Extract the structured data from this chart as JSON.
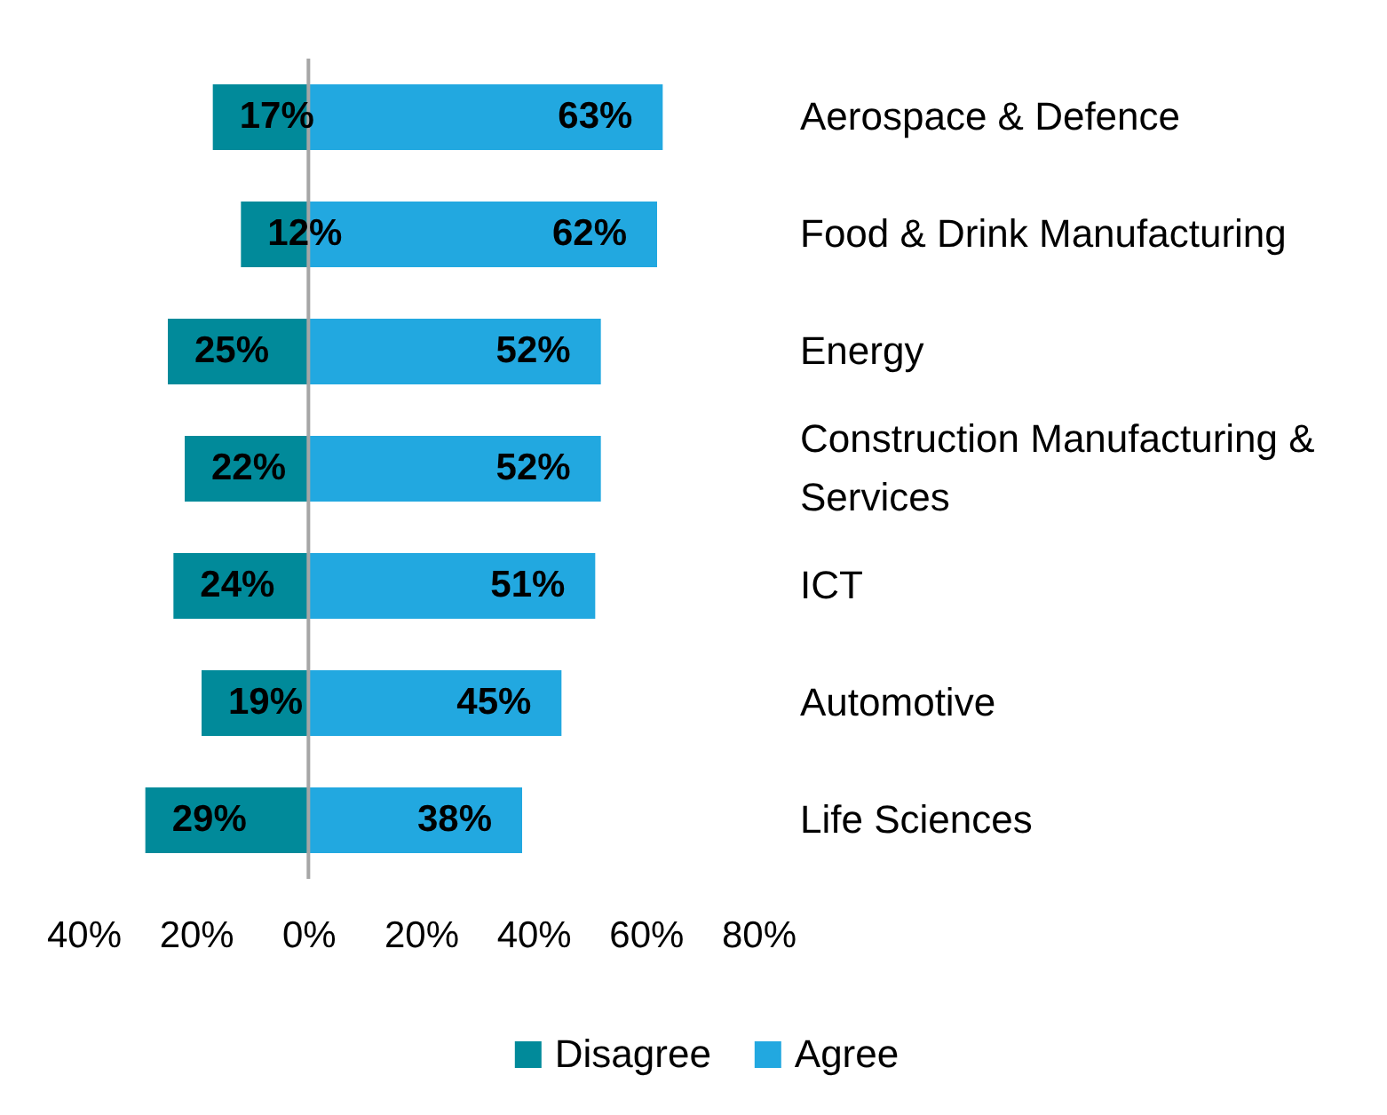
{
  "chart_data": {
    "type": "bar",
    "orientation": "horizontal",
    "stacked": true,
    "categories": [
      "Aerospace & Defence",
      "Food & Drink Manufacturing",
      "Energy",
      "Construction Manufacturing & Services",
      "ICT",
      "Automotive",
      "Life Sciences"
    ],
    "series": [
      {
        "name": "Disagree",
        "color": "#018a9a",
        "values": [
          17,
          12,
          25,
          22,
          24,
          19,
          29
        ],
        "base": [
          -17,
          -12,
          -25,
          -22,
          -24,
          -19,
          -29
        ],
        "value_labels": [
          "17%",
          "12%",
          "25%",
          "22%",
          "24%",
          "19%",
          "29%"
        ]
      },
      {
        "name": "Agree",
        "color": "#22a8e0",
        "values": [
          63,
          62,
          52,
          52,
          51,
          45,
          38
        ],
        "value_labels": [
          "63%",
          "62%",
          "52%",
          "52%",
          "51%",
          "45%",
          "38%"
        ]
      }
    ],
    "xlim": [
      -40,
      80
    ],
    "xticks": [
      {
        "value": -40,
        "label": "40%"
      },
      {
        "value": -20,
        "label": "20%"
      },
      {
        "value": 0,
        "label": "0%"
      },
      {
        "value": 20,
        "label": "20%"
      },
      {
        "value": 40,
        "label": "40%"
      },
      {
        "value": 60,
        "label": "60%"
      },
      {
        "value": 80,
        "label": "80%"
      }
    ],
    "ref_lines": [
      {
        "axis": "x",
        "value": 0,
        "color": "#a6a6a6"
      }
    ],
    "legend": "bottom"
  }
}
